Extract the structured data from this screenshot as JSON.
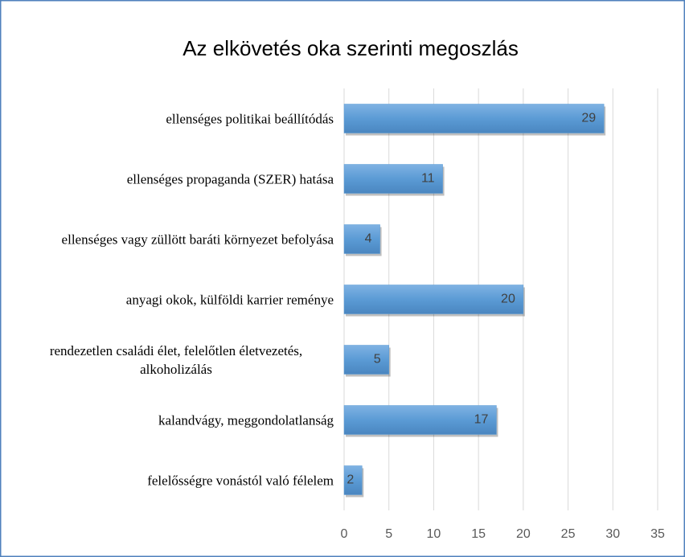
{
  "chart_data": {
    "type": "bar",
    "orientation": "horizontal",
    "title": "Az elkövetés oka szerinti megoszlás",
    "categories": [
      "ellenséges politikai beállítódás",
      "ellenséges propaganda (SZER) hatása",
      "ellenséges vagy züllött baráti környezet befolyása",
      "anyagi okok, külföldi karrier reménye",
      "rendezetlen családi élet, felelőtlen életvezetés, alkoholizálás",
      "kalandvágy, meggondolatlanság",
      "felelősségre vonástól való félelem"
    ],
    "values": [
      29,
      11,
      4,
      20,
      5,
      17,
      2
    ],
    "color": "#5b9bd5",
    "xlim": [
      0,
      35
    ],
    "xticks": [
      0,
      5,
      10,
      15,
      20,
      25,
      30,
      35
    ],
    "grid": true
  }
}
